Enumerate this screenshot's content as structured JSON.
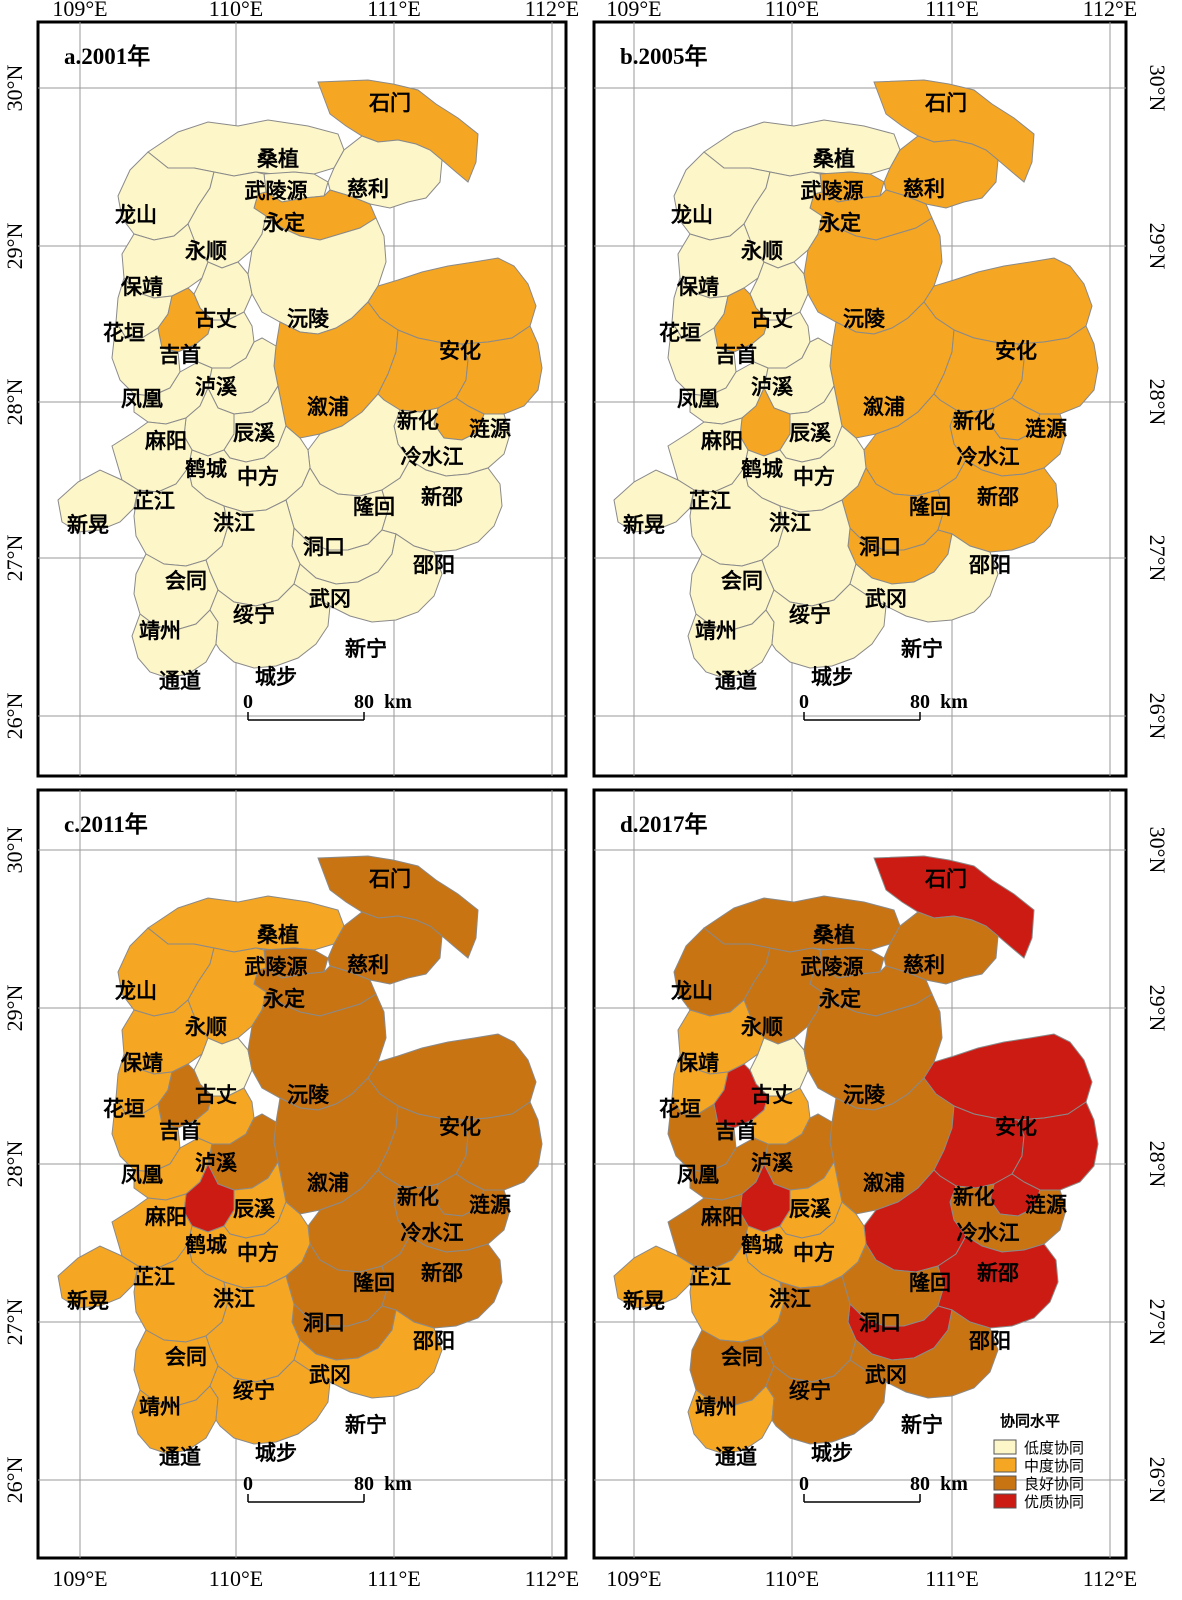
{
  "axes": {
    "lon_labels": [
      "109°E",
      "110°E",
      "111°E",
      "112°E"
    ],
    "lat_labels": [
      "30°N",
      "29°N",
      "28°N",
      "27°N",
      "26°N"
    ]
  },
  "scale_bar": {
    "start": "0",
    "end": "80",
    "unit": "km"
  },
  "legend": {
    "title": "协同水平",
    "items": [
      {
        "label": "低度协同",
        "color": "#fdf6c9"
      },
      {
        "label": "中度协同",
        "color": "#f5a623"
      },
      {
        "label": "良好协同",
        "color": "#c87413"
      },
      {
        "label": "优质协同",
        "color": "#cc1b12"
      }
    ]
  },
  "panels": [
    {
      "title": "a.2001年",
      "high": [
        "石门",
        "永定",
        "吉首",
        "安化",
        "溆浦",
        "新化",
        "涟源",
        "冷水江"
      ],
      "good": [],
      "top": []
    },
    {
      "title": "b.2005年",
      "high": [
        "石门",
        "武陵源",
        "永定",
        "慈利",
        "沅陵",
        "吉首",
        "安化",
        "溆浦",
        "新化",
        "涟源",
        "冷水江",
        "鹤城",
        "隆回",
        "新邵",
        "洞口",
        "邵阳",
        "武冈"
      ],
      "good": [],
      "top": []
    },
    {
      "title": "c.2011年",
      "high": [
        "桑植",
        "龙山",
        "永顺",
        "保靖",
        "花垣",
        "泸溪",
        "凤凰",
        "麻阳",
        "芷江",
        "新晃",
        "中方",
        "洪江",
        "会同",
        "靖州",
        "通道",
        "绥宁",
        "城步",
        "新宁"
      ],
      "good": [
        "石门",
        "慈利",
        "武陵源",
        "永定",
        "沅陵",
        "吉首",
        "溆浦",
        "辰溪",
        "安化",
        "新化",
        "涟源",
        "冷水江",
        "隆回",
        "新邵",
        "洞口",
        "邵阳",
        "武冈"
      ],
      "top": [
        "鹤城"
      ]
    },
    {
      "title": "d.2017年",
      "high": [
        "保靖",
        "花垣",
        "泸溪",
        "中方",
        "洪江",
        "会同",
        "通道",
        "新晃"
      ],
      "good": [
        "桑植",
        "龙山",
        "永顺",
        "武陵源",
        "永定",
        "慈利",
        "沅陵",
        "凤凰",
        "麻阳",
        "芷江",
        "辰溪",
        "溆浦",
        "洞口",
        "新邵",
        "靖州",
        "绥宁",
        "城步",
        "新宁"
      ],
      "top": [
        "石门",
        "吉首",
        "鹤城",
        "安化",
        "新化",
        "涟源",
        "冷水江",
        "隆回",
        "邵阳",
        "武冈"
      ]
    }
  ],
  "places": [
    "石门",
    "桑植",
    "武陵源",
    "慈利",
    "永定",
    "龙山",
    "永顺",
    "保靖",
    "古丈",
    "沅陵",
    "花垣",
    "吉首",
    "安化",
    "泸溪",
    "凤凰",
    "溆浦",
    "新化",
    "涟源",
    "麻阳",
    "辰溪",
    "冷水江",
    "鹤城",
    "中方",
    "芷江",
    "新邵",
    "隆回",
    "新晃",
    "洪江",
    "洞口",
    "邵阳",
    "会同",
    "武冈",
    "绥宁",
    "靖州",
    "新宁",
    "通道",
    "城步"
  ]
}
